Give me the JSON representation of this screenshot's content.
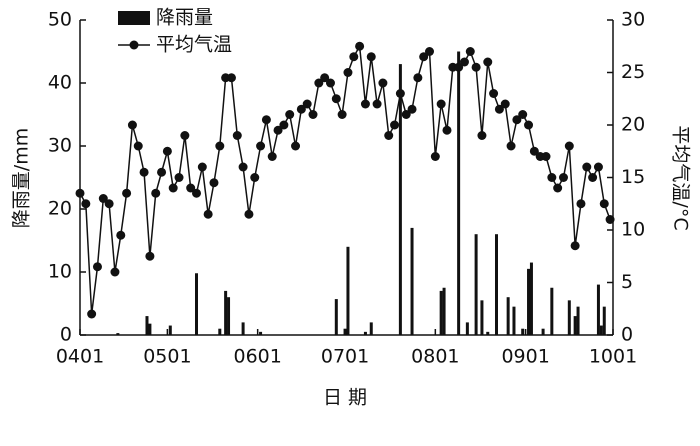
{
  "chart_data": {
    "type": "bar-line",
    "xlabel": "日 期",
    "ylabel": "降雨量/mm",
    "y2label": "平均气温/°C",
    "xlim": [
      0,
      183
    ],
    "xticks": [
      {
        "value": 0,
        "label": "0401"
      },
      {
        "value": 30,
        "label": "0501"
      },
      {
        "value": 61,
        "label": "0601"
      },
      {
        "value": 91,
        "label": "0701"
      },
      {
        "value": 122,
        "label": "0801"
      },
      {
        "value": 153,
        "label": "0901"
      },
      {
        "value": 183,
        "label": "1001"
      }
    ],
    "ylim": [
      0,
      50
    ],
    "yticks": [
      0,
      10,
      20,
      30,
      40,
      50
    ],
    "y2lim": [
      0,
      30
    ],
    "y2ticks": [
      0,
      5,
      10,
      15,
      20,
      25,
      30
    ],
    "legend": "upper left",
    "series": [
      {
        "name": "降雨量",
        "kind": "bar",
        "color": "#111111",
        "x": [
          13,
          23,
          24,
          31,
          40,
          48,
          50,
          51,
          56,
          62,
          88,
          91,
          92,
          98,
          100,
          110,
          114,
          124,
          125,
          130,
          133,
          136,
          138,
          140,
          143,
          147,
          149,
          152,
          154,
          155,
          159,
          162,
          168,
          170,
          171,
          178,
          179,
          180
        ],
        "values": [
          0.3,
          3,
          1.8,
          1.5,
          9.8,
          1,
          7,
          6,
          2,
          0.5,
          5.7,
          1,
          14,
          0.5,
          2,
          43,
          17,
          7,
          7.5,
          45,
          2,
          16,
          5.5,
          0.5,
          16,
          6,
          4.5,
          1,
          10.5,
          11.5,
          1,
          7.5,
          5.5,
          3,
          4.5,
          8,
          1.5,
          4.5
        ]
      },
      {
        "name": "平均气温",
        "kind": "line",
        "axis": "y2",
        "color": "#111111",
        "x": [
          0,
          2,
          4,
          6,
          8,
          10,
          12,
          14,
          16,
          18,
          20,
          22,
          24,
          26,
          28,
          30,
          32,
          34,
          36,
          38,
          40,
          42,
          44,
          46,
          48,
          50,
          52,
          54,
          56,
          58,
          60,
          62,
          64,
          66,
          68,
          70,
          72,
          74,
          76,
          78,
          80,
          82,
          84,
          86,
          88,
          90,
          92,
          94,
          96,
          98,
          100,
          102,
          104,
          106,
          108,
          110,
          112,
          114,
          116,
          118,
          120,
          122,
          124,
          126,
          128,
          130,
          132,
          134,
          136,
          138,
          140,
          142,
          144,
          146,
          148,
          150,
          152,
          154,
          156,
          158,
          160,
          162,
          164,
          166,
          168,
          170,
          172,
          174,
          176,
          178,
          180,
          182
        ],
        "values": [
          13.5,
          12.5,
          2,
          6.5,
          13,
          12.5,
          6,
          9.5,
          13.5,
          20,
          18,
          15.5,
          7.5,
          13.5,
          15.5,
          17.5,
          14,
          15,
          19,
          14,
          13.5,
          16,
          11.5,
          14.5,
          18,
          24.5,
          24.5,
          19,
          16,
          11.5,
          15,
          18,
          20.5,
          17,
          19.5,
          20,
          21,
          18,
          21.5,
          22,
          21,
          24,
          24.5,
          24,
          22.5,
          21,
          25,
          26.5,
          27.5,
          22,
          26.5,
          22,
          24,
          19,
          20,
          23,
          21,
          21.5,
          24.5,
          26.5,
          27,
          17,
          22,
          19.5,
          25.5,
          25.5,
          26,
          27,
          25.5,
          19,
          26,
          23,
          21.5,
          22,
          18,
          20.5,
          21,
          20,
          17.5,
          17,
          17,
          15,
          14,
          15,
          18,
          8.5,
          12.5,
          16,
          15,
          16,
          12.5,
          11
        ]
      }
    ]
  }
}
